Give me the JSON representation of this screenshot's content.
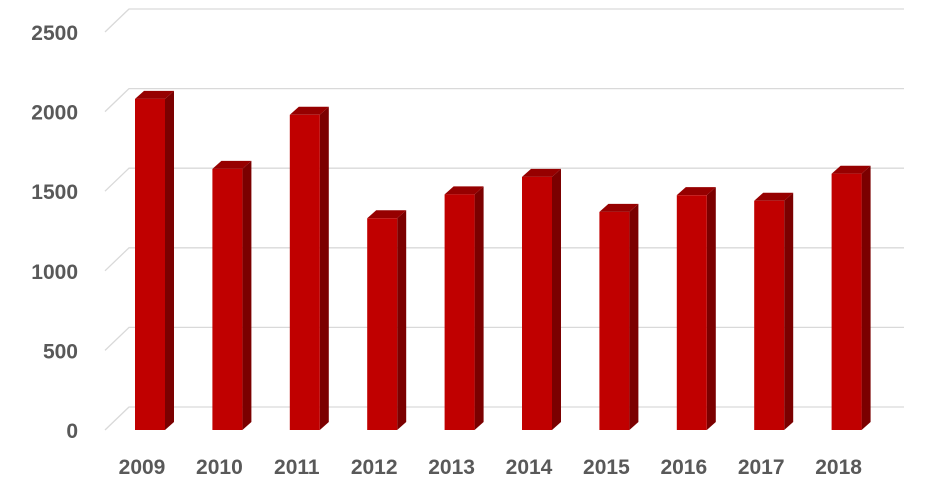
{
  "chart_data": {
    "type": "bar",
    "style": "3d-column",
    "categories": [
      "2009",
      "2010",
      "2011",
      "2012",
      "2013",
      "2014",
      "2015",
      "2016",
      "2017",
      "2018"
    ],
    "values": [
      2080,
      1640,
      1980,
      1330,
      1480,
      1590,
      1370,
      1475,
      1440,
      1610
    ],
    "ylim": [
      0,
      2500
    ],
    "yticks": [
      "0",
      "500",
      "1000",
      "1500",
      "2000",
      "2500"
    ],
    "grid": true,
    "legend": "none",
    "colors": {
      "bar_front": "#c00000",
      "bar_side": "#7b0000",
      "bar_top": "#960000"
    }
  }
}
